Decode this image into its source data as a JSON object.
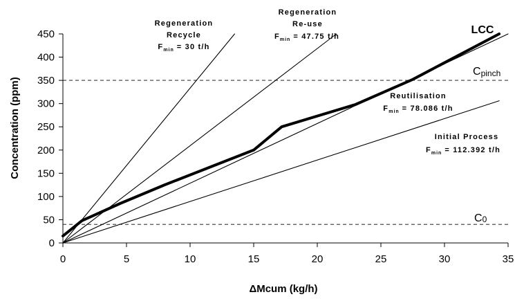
{
  "chart_data": {
    "type": "line",
    "xlabel": "ΔMcum (kg/h)",
    "ylabel": "Concentration (ppm)",
    "xlim": [
      0,
      35
    ],
    "ylim": [
      0,
      450
    ],
    "xticks": [
      0,
      5,
      10,
      15,
      20,
      25,
      30,
      35
    ],
    "yticks": [
      0,
      50,
      100,
      150,
      200,
      250,
      300,
      350,
      400,
      450
    ],
    "grid": false,
    "series": [
      {
        "name": "LCC",
        "style": "thick",
        "points": [
          [
            0,
            15
          ],
          [
            1.5,
            48
          ],
          [
            4.5,
            85
          ],
          [
            8,
            125
          ],
          [
            15,
            200
          ],
          [
            17.2,
            250
          ],
          [
            23,
            298
          ],
          [
            27.5,
            352
          ],
          [
            34.3,
            450
          ]
        ]
      },
      {
        "name": "Regeneration Recycle",
        "style": "thin",
        "points": [
          [
            0,
            0
          ],
          [
            13.5,
            450
          ]
        ]
      },
      {
        "name": "Regeneration Re-use",
        "style": "thin",
        "points": [
          [
            0,
            0
          ],
          [
            21.5,
            450
          ]
        ]
      },
      {
        "name": "Reutilisation",
        "style": "thin",
        "points": [
          [
            0,
            0
          ],
          [
            35,
            450
          ]
        ]
      },
      {
        "name": "Initial Process",
        "style": "thin",
        "points": [
          [
            0,
            0
          ],
          [
            34.3,
            306
          ]
        ]
      }
    ],
    "reference_lines": [
      {
        "name": "Cpinch",
        "value": 350,
        "style": "dashed"
      },
      {
        "name": "C0",
        "value": 40,
        "style": "dashed"
      }
    ],
    "annotations": {
      "recycle": {
        "line1": "Regeneration",
        "line2": "Recycle",
        "fmin_prefix": "F",
        "fmin_sub": "min",
        "fmin_value": "= 30 t/h"
      },
      "reuse": {
        "line1": "Regeneration",
        "line2": "Re-use",
        "fmin_prefix": "F",
        "fmin_sub": "min",
        "fmin_value": "= 47.75 t/h"
      },
      "reutil": {
        "line1": "Reutilisation",
        "fmin_prefix": "F",
        "fmin_sub": "min",
        "fmin_value": "= 78.086 t/h"
      },
      "initial": {
        "line1": "Initial Process",
        "fmin_prefix": "F",
        "fmin_sub": "min",
        "fmin_value": "= 112.392 t/h"
      },
      "lcc": "LCC",
      "cpinch_main": "C",
      "cpinch_sub": "pinch",
      "c0_main": "C",
      "c0_sub": "0"
    }
  }
}
